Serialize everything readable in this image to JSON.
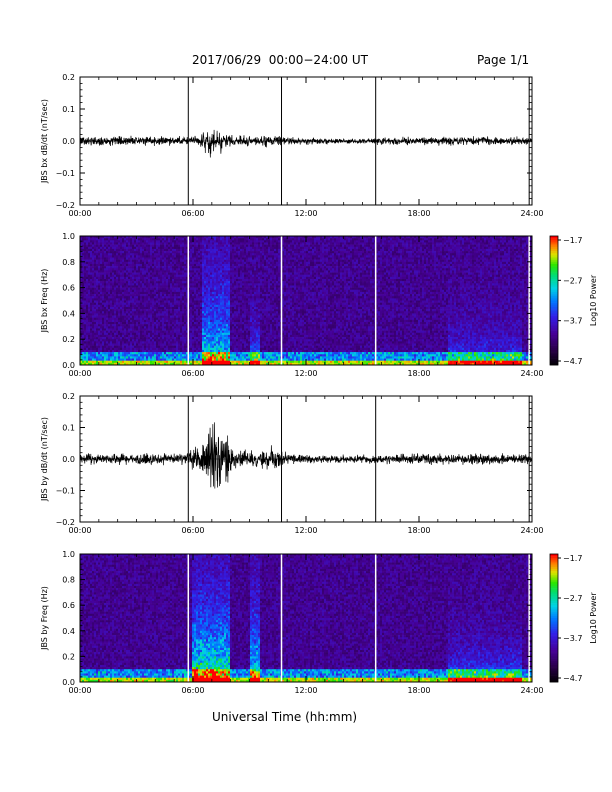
{
  "header": {
    "title": "2017/06/29  00:00−24:00 UT",
    "page": "Page 1/1"
  },
  "footer": {
    "xlabel": "Universal Time (hh:mm)"
  },
  "chart_data": [
    {
      "type": "line",
      "ylabel": "JBS bx dB/dt (nT/sec)",
      "xlim_hours": [
        0,
        24
      ],
      "ylim": [
        -0.2,
        0.2
      ],
      "x_ticks": [
        "00:00",
        "06:00",
        "12:00",
        "18:00",
        "24:00"
      ],
      "y_ticks": [
        "0.2",
        "0.1",
        "0.0",
        "−0.1",
        "−0.2"
      ],
      "vertical_markers_hours": [
        5.75,
        10.7,
        15.7,
        23.85
      ],
      "noise_envelope": [
        {
          "t": 0,
          "amp": 0.012
        },
        {
          "t": 5.8,
          "amp": 0.012
        },
        {
          "t": 6.5,
          "amp": 0.02
        },
        {
          "t": 7.0,
          "amp": 0.045
        },
        {
          "t": 7.5,
          "amp": 0.035
        },
        {
          "t": 8.0,
          "amp": 0.015
        },
        {
          "t": 9.5,
          "amp": 0.012
        },
        {
          "t": 10.2,
          "amp": 0.02
        },
        {
          "t": 11.0,
          "amp": 0.01
        },
        {
          "t": 14.0,
          "amp": 0.006
        },
        {
          "t": 17.0,
          "amp": 0.01
        },
        {
          "t": 20.0,
          "amp": 0.012
        },
        {
          "t": 24,
          "amp": 0.01
        }
      ]
    },
    {
      "type": "heatmap",
      "ylabel": "JBS bx Freq (Hz)",
      "xlim_hours": [
        0,
        24
      ],
      "ylim": [
        0,
        1.0
      ],
      "x_ticks": [
        "00:00",
        "06:00",
        "12:00",
        "18:00",
        "24:00"
      ],
      "y_ticks": [
        "1.0",
        "0.8",
        "0.6",
        "0.4",
        "0.2",
        "0.0"
      ],
      "vertical_markers_hours": [
        5.75,
        10.7,
        15.7,
        23.85
      ],
      "colorbar": {
        "label": "Log10 Power",
        "ticks": [
          "−1.7",
          "−2.7",
          "−3.7",
          "−4.7"
        ],
        "range": [
          -4.7,
          -1.7
        ]
      },
      "activity_bands": [
        {
          "t_start": 6.5,
          "t_end": 8.0,
          "intensity": 0.55
        },
        {
          "t_start": 9.0,
          "t_end": 9.6,
          "intensity": 0.45
        },
        {
          "t_start": 19.5,
          "t_end": 23.5,
          "intensity": 0.3
        }
      ]
    },
    {
      "type": "line",
      "ylabel": "JBS by dB/dt (nT/sec)",
      "xlim_hours": [
        0,
        24
      ],
      "ylim": [
        -0.2,
        0.2
      ],
      "x_ticks": [
        "00:00",
        "06:00",
        "12:00",
        "18:00",
        "24:00"
      ],
      "y_ticks": [
        "0.2",
        "0.1",
        "0.0",
        "−0.1",
        "−0.2"
      ],
      "vertical_markers_hours": [
        5.75,
        10.7,
        15.7,
        23.85
      ],
      "noise_envelope": [
        {
          "t": 0,
          "amp": 0.015
        },
        {
          "t": 5.5,
          "amp": 0.015
        },
        {
          "t": 6.3,
          "amp": 0.04
        },
        {
          "t": 7.0,
          "amp": 0.12
        },
        {
          "t": 7.6,
          "amp": 0.08
        },
        {
          "t": 8.2,
          "amp": 0.03
        },
        {
          "t": 9.2,
          "amp": 0.025
        },
        {
          "t": 10.0,
          "amp": 0.035
        },
        {
          "t": 11.0,
          "amp": 0.015
        },
        {
          "t": 14.0,
          "amp": 0.01
        },
        {
          "t": 17.0,
          "amp": 0.013
        },
        {
          "t": 20.0,
          "amp": 0.016
        },
        {
          "t": 24,
          "amp": 0.014
        }
      ]
    },
    {
      "type": "heatmap",
      "ylabel": "JBS by Freq (Hz)",
      "xlim_hours": [
        0,
        24
      ],
      "ylim": [
        0,
        1.0
      ],
      "x_ticks": [
        "00:00",
        "06:00",
        "12:00",
        "18:00",
        "24:00"
      ],
      "y_ticks": [
        "1.0",
        "0.8",
        "0.6",
        "0.4",
        "0.2",
        "0.0"
      ],
      "vertical_markers_hours": [
        5.75,
        10.7,
        15.7,
        23.85
      ],
      "colorbar": {
        "label": "Log10 Power",
        "ticks": [
          "−1.7",
          "−2.7",
          "−3.7",
          "−4.7"
        ],
        "range": [
          -4.7,
          -1.7
        ]
      },
      "activity_bands": [
        {
          "t_start": 6.0,
          "t_end": 8.0,
          "intensity": 0.7
        },
        {
          "t_start": 9.0,
          "t_end": 9.6,
          "intensity": 0.55
        },
        {
          "t_start": 19.5,
          "t_end": 23.5,
          "intensity": 0.35
        }
      ]
    }
  ]
}
